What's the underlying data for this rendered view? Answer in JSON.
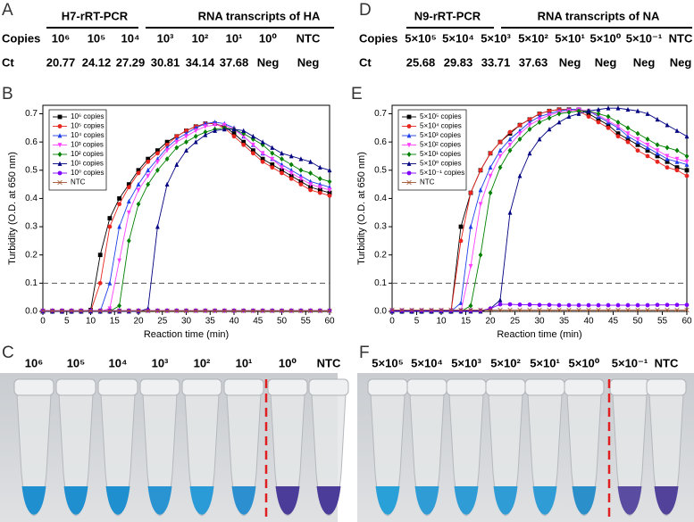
{
  "table_a": {
    "letter": "A",
    "method": "H7-rRT-PCR",
    "target": "RNA transcripts of HA",
    "rows": [
      [
        "Copies",
        "10⁶",
        "10⁵",
        "10⁴",
        "10³",
        "10²",
        "10¹",
        "10⁰",
        "NTC"
      ],
      [
        "Ct",
        "20.77",
        "24.12",
        "27.29",
        "30.81",
        "34.14",
        "37.68",
        "Neg",
        "Neg"
      ]
    ]
  },
  "table_d": {
    "letter": "D",
    "method": "N9-rRT-PCR",
    "target": "RNA transcripts of NA",
    "rows": [
      [
        "Copies",
        "5×10⁵",
        "5×10⁴",
        "5×10³",
        "5×10²",
        "5×10¹",
        "5×10⁰",
        "5×10⁻¹",
        "NTC"
      ],
      [
        "Ct",
        "25.68",
        "29.83",
        "33.71",
        "37.63",
        "Neg",
        "Neg",
        "Neg",
        "Neg"
      ]
    ]
  },
  "chart_data": [
    {
      "type": "line",
      "letter": "B",
      "xlabel": "Reaction time (min)",
      "ylabel": "Turbidity (O.D. at 650 nm)",
      "legend": "upper left",
      "threshold": 0.1,
      "xlim": [
        0,
        60
      ],
      "ylim": [
        0,
        0.73
      ],
      "xticks": [
        0,
        5,
        10,
        15,
        20,
        25,
        30,
        35,
        40,
        45,
        50,
        55,
        60
      ],
      "yticks": [
        {
          "value": 0,
          "label": "0.0"
        },
        0.1,
        0.2,
        0.3,
        0.4,
        0.5,
        0.6,
        0.7
      ],
      "x": [
        0,
        2,
        4,
        6,
        8,
        10,
        12,
        14,
        16,
        18,
        20,
        22,
        24,
        26,
        28,
        30,
        32,
        34,
        36,
        38,
        40,
        42,
        44,
        46,
        48,
        50,
        52,
        54,
        56,
        58,
        60
      ],
      "series": [
        {
          "name": "10⁶ copies",
          "color": "#000000",
          "marker": "square",
          "values": [
            0,
            0,
            0,
            0,
            0,
            0.005,
            0.2,
            0.33,
            0.4,
            0.45,
            0.5,
            0.54,
            0.57,
            0.6,
            0.62,
            0.64,
            0.655,
            0.665,
            0.665,
            0.655,
            0.63,
            0.6,
            0.57,
            0.54,
            0.52,
            0.5,
            0.48,
            0.46,
            0.44,
            0.43,
            0.42
          ]
        },
        {
          "name": "10⁵ copies",
          "color": "#e8251f",
          "marker": "circle",
          "values": [
            0,
            0,
            0,
            0,
            0,
            0,
            0.1,
            0.3,
            0.38,
            0.44,
            0.49,
            0.53,
            0.56,
            0.59,
            0.62,
            0.64,
            0.655,
            0.665,
            0.665,
            0.65,
            0.62,
            0.59,
            0.56,
            0.53,
            0.51,
            0.49,
            0.47,
            0.45,
            0.43,
            0.42,
            0.41
          ]
        },
        {
          "name": "10⁴ copies",
          "color": "#1f3fe8",
          "marker": "triangle",
          "values": [
            0,
            0,
            0,
            0,
            0,
            0,
            0,
            0.1,
            0.3,
            0.39,
            0.45,
            0.5,
            0.54,
            0.58,
            0.61,
            0.63,
            0.65,
            0.665,
            0.67,
            0.665,
            0.65,
            0.62,
            0.59,
            0.56,
            0.54,
            0.52,
            0.5,
            0.48,
            0.46,
            0.45,
            0.44
          ]
        },
        {
          "name": "10³ copies",
          "color": "#ff40ff",
          "marker": "triangle-down",
          "values": [
            0,
            0,
            0,
            0,
            0,
            0,
            0,
            0.01,
            0.18,
            0.35,
            0.43,
            0.48,
            0.53,
            0.57,
            0.6,
            0.62,
            0.64,
            0.655,
            0.66,
            0.66,
            0.645,
            0.62,
            0.59,
            0.56,
            0.54,
            0.51,
            0.49,
            0.47,
            0.45,
            0.44,
            0.43
          ]
        },
        {
          "name": "10² copies",
          "color": "#008000",
          "marker": "diamond",
          "values": [
            0,
            0,
            0,
            0,
            0,
            0,
            0,
            0,
            0.02,
            0.25,
            0.38,
            0.45,
            0.5,
            0.54,
            0.58,
            0.6,
            0.62,
            0.635,
            0.645,
            0.65,
            0.645,
            0.63,
            0.61,
            0.59,
            0.56,
            0.54,
            0.52,
            0.5,
            0.49,
            0.47,
            0.46
          ]
        },
        {
          "name": "10¹ copies",
          "color": "#000080",
          "marker": "triangle",
          "values": [
            0,
            0,
            0,
            0,
            0,
            0,
            0,
            0,
            0,
            0,
            0,
            0.01,
            0.3,
            0.45,
            0.52,
            0.57,
            0.6,
            0.625,
            0.64,
            0.645,
            0.645,
            0.64,
            0.62,
            0.6,
            0.58,
            0.56,
            0.55,
            0.54,
            0.53,
            0.51,
            0.5
          ]
        },
        {
          "name": "10⁰ copies",
          "color": "#8000ff",
          "marker": "circle",
          "values": [
            0.003,
            0.003,
            0.003,
            0.003,
            0.003,
            0.003,
            0.003,
            0.003,
            0.003,
            0.003,
            0.003,
            0.003,
            0.003,
            0.003,
            0.003,
            0.003,
            0.003,
            0.003,
            0.003,
            0.003,
            0.003,
            0.003,
            0.003,
            0.003,
            0.003,
            0.003,
            0.003,
            0.003,
            0.003,
            0.003,
            0.003
          ]
        },
        {
          "name": "NTC",
          "color": "#a0522d",
          "marker": "cross",
          "values": [
            0.002,
            0.002,
            0.002,
            0.002,
            0.002,
            0.002,
            0.002,
            0.002,
            0.002,
            0.002,
            0.002,
            0.002,
            0.002,
            0.002,
            0.002,
            0.002,
            0.002,
            0.002,
            0.002,
            0.002,
            0.002,
            0.002,
            0.002,
            0.002,
            0.002,
            0.002,
            0.002,
            0.002,
            0.002,
            0.002,
            0.002
          ]
        }
      ]
    },
    {
      "type": "line",
      "letter": "E",
      "xlabel": "Reaction time (min)",
      "ylabel": "Turbidity (O.D. at 650 nm)",
      "legend": "upper left",
      "threshold": 0.1,
      "xlim": [
        0,
        60
      ],
      "ylim": [
        0,
        0.73
      ],
      "xticks": [
        0,
        5,
        10,
        15,
        20,
        25,
        30,
        35,
        40,
        45,
        50,
        55,
        60
      ],
      "yticks": [
        {
          "value": 0,
          "label": "0.0"
        },
        0.1,
        0.2,
        0.3,
        0.4,
        0.5,
        0.6,
        0.7
      ],
      "x": [
        0,
        2,
        4,
        6,
        8,
        10,
        12,
        14,
        16,
        18,
        20,
        22,
        24,
        26,
        28,
        30,
        32,
        34,
        36,
        38,
        40,
        42,
        44,
        46,
        48,
        50,
        52,
        54,
        56,
        58,
        60
      ],
      "series": [
        {
          "name": "5×10⁵ copies",
          "color": "#000000",
          "marker": "square",
          "values": [
            0,
            0,
            0,
            0,
            0,
            0,
            0,
            0.3,
            0.42,
            0.5,
            0.56,
            0.6,
            0.63,
            0.66,
            0.68,
            0.7,
            0.71,
            0.715,
            0.715,
            0.715,
            0.7,
            0.68,
            0.66,
            0.63,
            0.61,
            0.59,
            0.57,
            0.55,
            0.53,
            0.51,
            0.5
          ]
        },
        {
          "name": "5×10⁴ copies",
          "color": "#e8251f",
          "marker": "circle",
          "values": [
            0,
            0,
            0,
            0,
            0,
            0,
            0,
            0.25,
            0.42,
            0.5,
            0.56,
            0.6,
            0.635,
            0.66,
            0.68,
            0.7,
            0.71,
            0.715,
            0.715,
            0.71,
            0.69,
            0.67,
            0.65,
            0.62,
            0.6,
            0.57,
            0.55,
            0.53,
            0.51,
            0.5,
            0.48
          ]
        },
        {
          "name": "5×10³ copies",
          "color": "#1f3fe8",
          "marker": "triangle",
          "values": [
            0,
            0,
            0,
            0,
            0,
            0,
            0,
            0.03,
            0.3,
            0.43,
            0.51,
            0.57,
            0.61,
            0.64,
            0.67,
            0.69,
            0.7,
            0.71,
            0.715,
            0.715,
            0.71,
            0.69,
            0.67,
            0.65,
            0.62,
            0.6,
            0.58,
            0.56,
            0.54,
            0.53,
            0.52
          ]
        },
        {
          "name": "5×10² copies",
          "color": "#ff40ff",
          "marker": "triangle-down",
          "values": [
            0,
            0,
            0,
            0,
            0,
            0,
            0,
            0,
            0.16,
            0.38,
            0.48,
            0.55,
            0.59,
            0.63,
            0.66,
            0.68,
            0.695,
            0.705,
            0.71,
            0.715,
            0.71,
            0.695,
            0.675,
            0.655,
            0.63,
            0.61,
            0.59,
            0.57,
            0.55,
            0.54,
            0.53
          ]
        },
        {
          "name": "5×10¹ copies",
          "color": "#008000",
          "marker": "diamond",
          "values": [
            0,
            0,
            0,
            0,
            0,
            0,
            0,
            0,
            0.02,
            0.2,
            0.42,
            0.51,
            0.57,
            0.61,
            0.645,
            0.67,
            0.685,
            0.7,
            0.705,
            0.71,
            0.71,
            0.7,
            0.69,
            0.67,
            0.65,
            0.63,
            0.61,
            0.59,
            0.58,
            0.57,
            0.55
          ]
        },
        {
          "name": "5×10⁰ copies",
          "color": "#000080",
          "marker": "triangle",
          "values": [
            0,
            0,
            0,
            0,
            0,
            0,
            0,
            0,
            0,
            0,
            0.01,
            0.04,
            0.35,
            0.48,
            0.56,
            0.61,
            0.645,
            0.67,
            0.69,
            0.7,
            0.71,
            0.715,
            0.72,
            0.72,
            0.715,
            0.71,
            0.7,
            0.68,
            0.66,
            0.64,
            0.62
          ]
        },
        {
          "name": "5×10⁻¹ copies",
          "color": "#8000ff",
          "marker": "circle",
          "values": [
            0.003,
            0.003,
            0.003,
            0.003,
            0.003,
            0.003,
            0.003,
            0.003,
            0.003,
            0.003,
            0.01,
            0.025,
            0.025,
            0.024,
            0.024,
            0.023,
            0.023,
            0.022,
            0.022,
            0.022,
            0.022,
            0.022,
            0.022,
            0.022,
            0.022,
            0.022,
            0.022,
            0.023,
            0.023,
            0.023,
            0.023
          ]
        },
        {
          "name": "NTC",
          "color": "#a0522d",
          "marker": "cross",
          "values": [
            0.005,
            0.005,
            0.005,
            0.005,
            0.005,
            0.005,
            0.005,
            0.005,
            0.005,
            0.005,
            0.005,
            0.005,
            0.005,
            0.005,
            0.005,
            0.005,
            0.005,
            0.005,
            0.005,
            0.005,
            0.005,
            0.005,
            0.005,
            0.005,
            0.005,
            0.005,
            0.005,
            0.005,
            0.005,
            0.005,
            0.005
          ]
        }
      ]
    }
  ],
  "photo_c": {
    "letter": "C",
    "labels": [
      "10⁶",
      "10⁵",
      "10⁴",
      "10³",
      "10²",
      "10¹",
      "10⁰",
      "NTC"
    ]
  },
  "photo_f": {
    "letter": "F",
    "labels": [
      "5×10⁵",
      "5×10⁴",
      "5×10³",
      "5×10²",
      "5×10¹",
      "5×10⁰",
      "5×10⁻¹",
      "NTC"
    ]
  }
}
